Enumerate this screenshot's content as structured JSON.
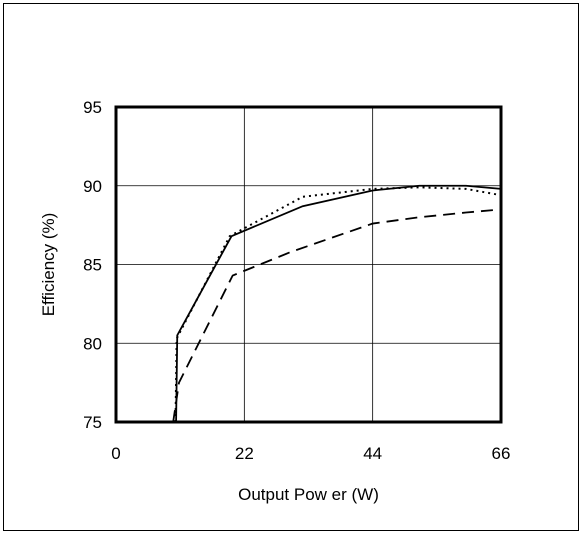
{
  "chart_data": {
    "type": "line",
    "title": "",
    "xlabel": "Output Pow er (W)",
    "ylabel": "Efficiency (%)",
    "xlim": [
      0,
      66
    ],
    "ylim": [
      75,
      95
    ],
    "xticks": [
      "0",
      "22",
      "44",
      "66"
    ],
    "yticks": [
      "75",
      "80",
      "85",
      "90",
      "95"
    ],
    "grid": true,
    "legend": "none",
    "series": [
      {
        "style": "solid",
        "color": "#000000",
        "points": [
          [
            10.3,
            75
          ],
          [
            10.5,
            80.5
          ],
          [
            19.8,
            86.8
          ],
          [
            32,
            88.7
          ],
          [
            44,
            89.7
          ],
          [
            52,
            90.0
          ],
          [
            60,
            90.0
          ],
          [
            66,
            89.8
          ]
        ]
      },
      {
        "style": "dotted",
        "color": "#000000",
        "points": [
          [
            10.2,
            75
          ],
          [
            10.4,
            80.3
          ],
          [
            19.5,
            86.8
          ],
          [
            32,
            89.3
          ],
          [
            44,
            89.8
          ],
          [
            52,
            89.9
          ],
          [
            60,
            89.8
          ],
          [
            66,
            89.4
          ]
        ]
      },
      {
        "style": "dashed",
        "color": "#000000",
        "points": [
          [
            9.8,
            75
          ],
          [
            10.8,
            77.5
          ],
          [
            20,
            84.3
          ],
          [
            30,
            85.8
          ],
          [
            44,
            87.6
          ],
          [
            52,
            88.0
          ],
          [
            60,
            88.3
          ],
          [
            66,
            88.5
          ]
        ]
      }
    ]
  }
}
